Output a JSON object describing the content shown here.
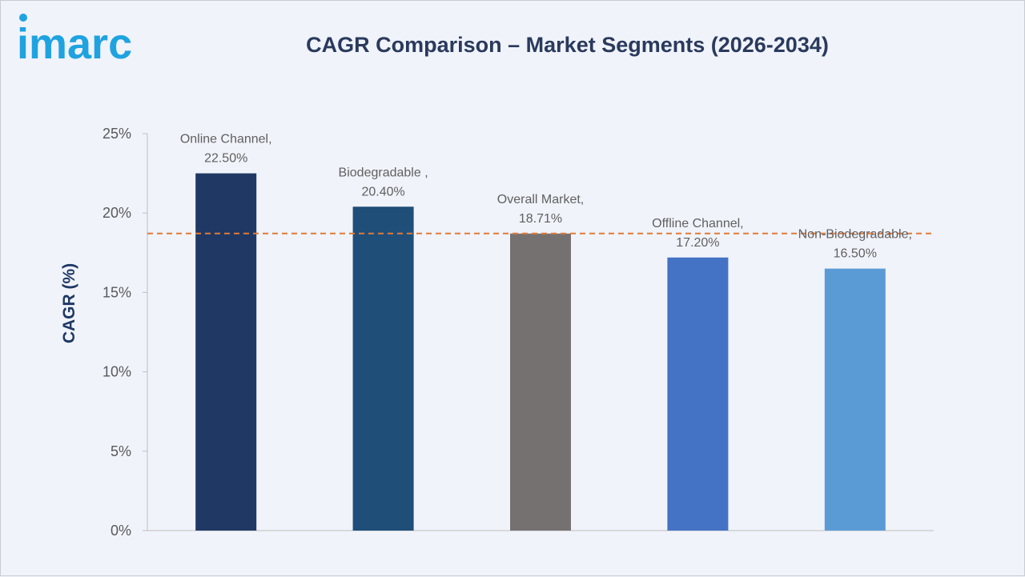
{
  "brand": {
    "name": "imarc",
    "color": "#1fa3e0"
  },
  "chart_data": {
    "type": "bar",
    "title": "CAGR Comparison – Market Segments (2026-2034)",
    "xlabel": "",
    "ylabel": "CAGR (%)",
    "ylim": [
      0,
      25
    ],
    "yticks": [
      "0%",
      "5%",
      "10%",
      "15%",
      "20%",
      "25%"
    ],
    "categories": [
      "Online Channel",
      "Biodegradable ",
      "Overall Market",
      "Offline Channel",
      "Non-Biodegradable"
    ],
    "values": [
      22.5,
      20.4,
      18.71,
      17.2,
      16.5
    ],
    "data_labels": [
      [
        "Online Channel,",
        "22.50%"
      ],
      [
        "Biodegradable ,",
        "20.40%"
      ],
      [
        "Overall Market,",
        "18.71%"
      ],
      [
        "Offline Channel,",
        "17.20%"
      ],
      [
        "Non-Biodegradable,",
        "16.50%"
      ]
    ],
    "colors": [
      "#1f3864",
      "#1f4e79",
      "#767171",
      "#4472c4",
      "#5b9bd5"
    ],
    "reference_line": {
      "value": 18.71,
      "style": "dashed",
      "color": "#e07b39"
    },
    "grid": false,
    "legend": "none"
  }
}
